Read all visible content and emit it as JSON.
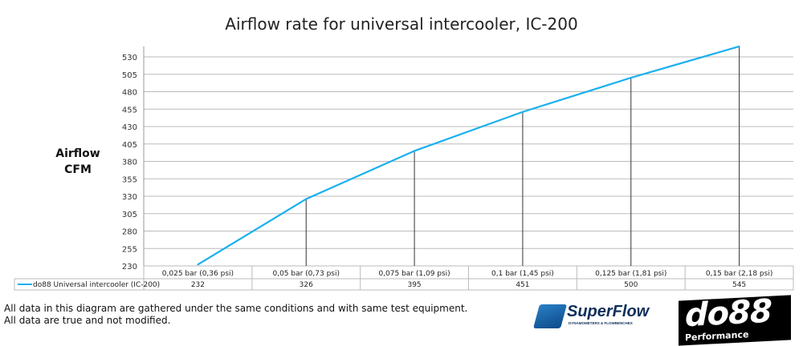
{
  "chart_data": {
    "type": "line",
    "title": "Airflow rate for universal intercooler, IC-200",
    "ylabel": [
      "Airflow",
      "CFM"
    ],
    "categories": [
      "0,025 bar (0,36 psi)",
      "0,05 bar (0,73 psi)",
      "0,075 bar (1,09 psi)",
      "0,1 bar (1,45 psi)",
      "0,125 bar (1,81 psi)",
      "0,15 bar (2,18 psi)"
    ],
    "series": [
      {
        "name": "do88 Universal intercooler (IC-200)",
        "values": [
          232,
          326,
          395,
          451,
          500,
          545
        ],
        "color": "#1ab0ee"
      }
    ],
    "yticks": [
      230,
      255,
      280,
      305,
      330,
      355,
      380,
      405,
      430,
      455,
      480,
      505,
      530
    ],
    "ylim": [
      230,
      545
    ],
    "grid": true,
    "legend": "data-table"
  },
  "notes": [
    "All data in this diagram are gathered under the same conditions and with same test equipment.",
    "All data are true and not modified."
  ],
  "logos": {
    "superflow": "SuperFlow",
    "superflow_sub": "DYNAMOMETERS & FLOWBENCHES",
    "do88": "do88",
    "do88_sub": "Performance"
  }
}
